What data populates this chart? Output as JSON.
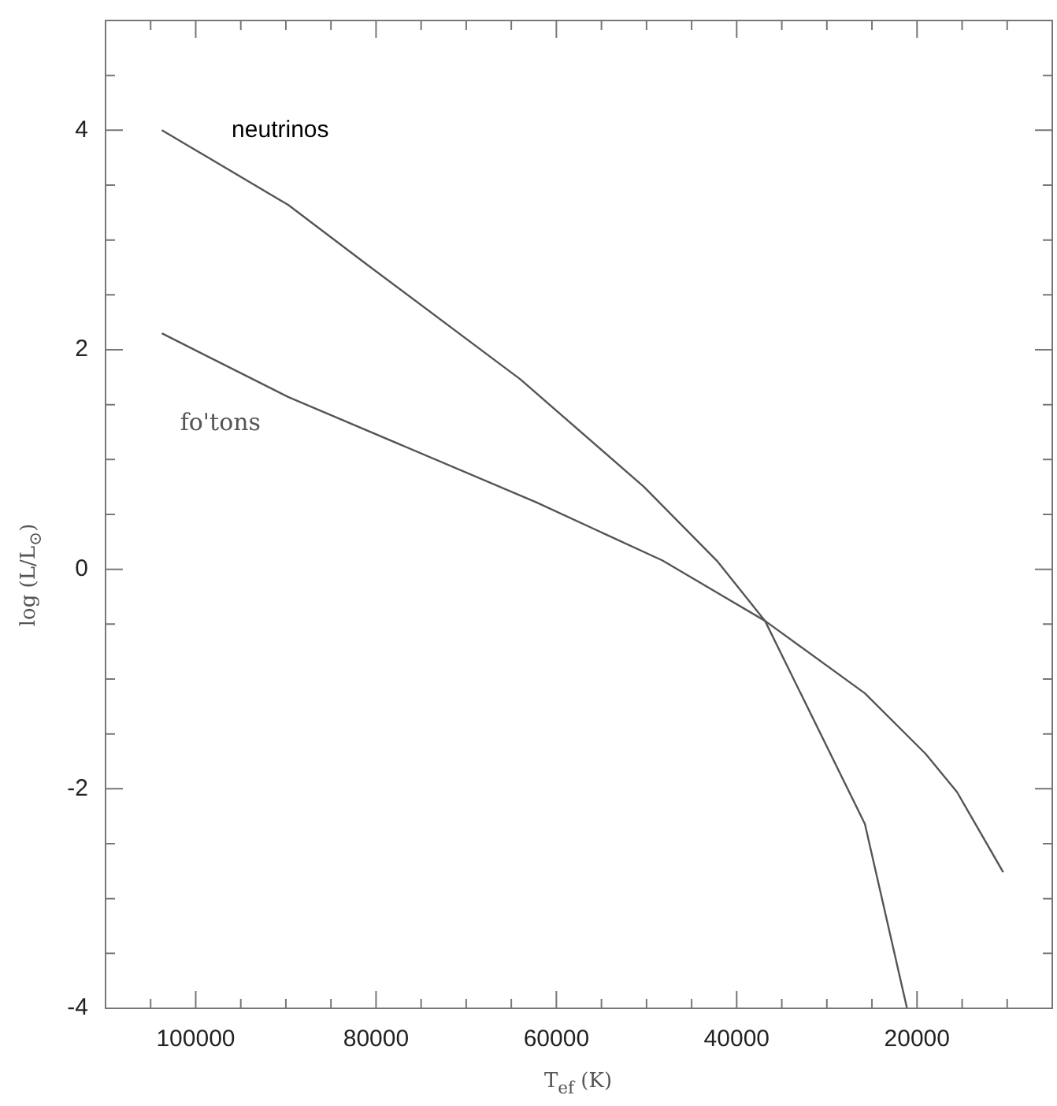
{
  "chart_data": {
    "type": "line",
    "xlabel": "T$_{ef}$ (K)",
    "ylabel": "log (L/L$_{⊙}$)",
    "xlim": [
      110000,
      5000
    ],
    "ylim": [
      -4,
      5
    ],
    "xticks": [
      {
        "value": 110000,
        "label": null
      },
      {
        "value": 105000,
        "label": null
      },
      100000,
      {
        "value": 95000,
        "label": null
      },
      {
        "value": 90000,
        "label": null
      },
      {
        "value": 85000,
        "label": null
      },
      80000,
      {
        "value": 75000,
        "label": null
      },
      {
        "value": 70000,
        "label": null
      },
      {
        "value": 65000,
        "label": null
      },
      60000,
      {
        "value": 55000,
        "label": null
      },
      {
        "value": 50000,
        "label": null
      },
      {
        "value": 45000,
        "label": null
      },
      40000,
      {
        "value": 35000,
        "label": null
      },
      {
        "value": 30000,
        "label": null
      },
      {
        "value": 25000,
        "label": null
      },
      20000,
      {
        "value": 15000,
        "label": null
      },
      {
        "value": 10000,
        "label": null
      },
      {
        "value": 5000,
        "label": null
      }
    ],
    "yticks": [
      -4,
      {
        "value": -3.5,
        "label": null
      },
      {
        "value": -3,
        "label": null
      },
      {
        "value": -2.5,
        "label": null
      },
      -2,
      {
        "value": -1.5,
        "label": null
      },
      {
        "value": -1,
        "label": null
      },
      {
        "value": -0.5,
        "label": null
      },
      0,
      {
        "value": 0.5,
        "label": null
      },
      {
        "value": 1,
        "label": null
      },
      {
        "value": 1.5,
        "label": null
      },
      2,
      {
        "value": 2.5,
        "label": null
      },
      {
        "value": 3,
        "label": null
      },
      {
        "value": 3.5,
        "label": null
      },
      4,
      {
        "value": 4.5,
        "label": null
      },
      {
        "value": 5,
        "label": null
      }
    ],
    "grid": false,
    "legend": false,
    "marker": "none",
    "line_style": "solid",
    "series": [
      {
        "name": "neutrinos",
        "color": "#555555",
        "x": [
          103750,
          89750,
          80900,
          63980,
          50280,
          42110,
          36860,
          25780,
          21110
        ],
        "values": [
          4.0,
          3.32,
          2.77,
          1.73,
          0.75,
          0.07,
          -0.47,
          -2.32,
          -4.0
        ]
      },
      {
        "name": "fo'tons",
        "color": "#555555",
        "x": [
          103750,
          89750,
          62230,
          48230,
          36860,
          25780,
          19060,
          15560,
          10440
        ],
        "values": [
          2.15,
          1.57,
          0.61,
          0.08,
          -0.47,
          -1.13,
          -1.68,
          -2.03,
          -2.76
        ]
      }
    ]
  }
}
